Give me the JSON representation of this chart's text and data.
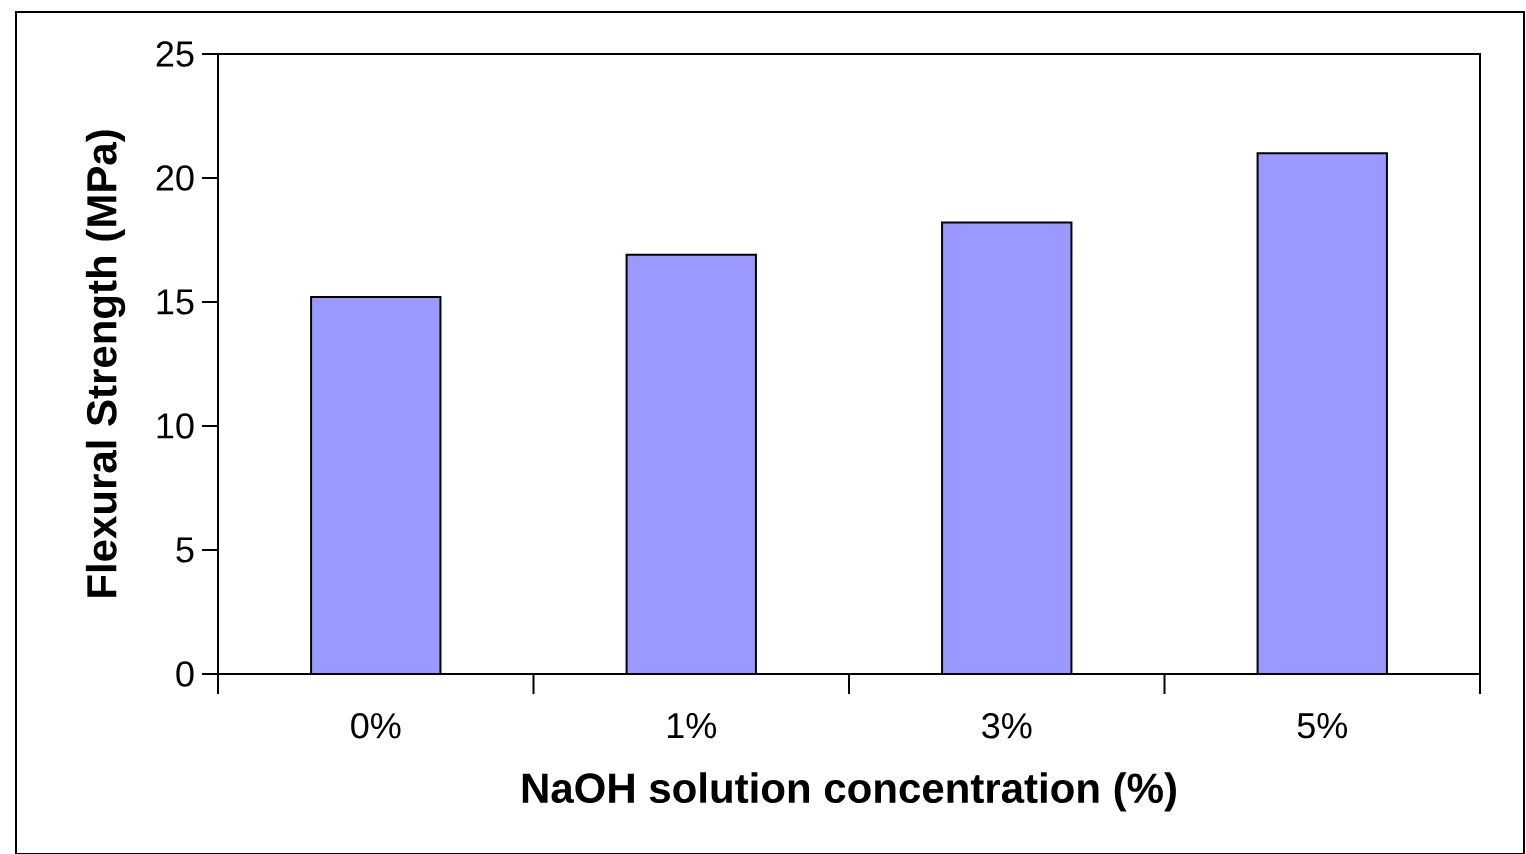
{
  "chart_data": {
    "type": "bar",
    "xlabel": "NaOH solution concentration (%)",
    "ylabel": "Flexural Strength (MPa)",
    "categories": [
      "0%",
      "1%",
      "3%",
      "5%"
    ],
    "values": [
      15.2,
      16.9,
      18.2,
      21.0
    ],
    "color": "#9999ff",
    "ylim": [
      0,
      25
    ],
    "yticks": [
      0,
      5,
      10,
      15,
      20,
      25
    ]
  }
}
